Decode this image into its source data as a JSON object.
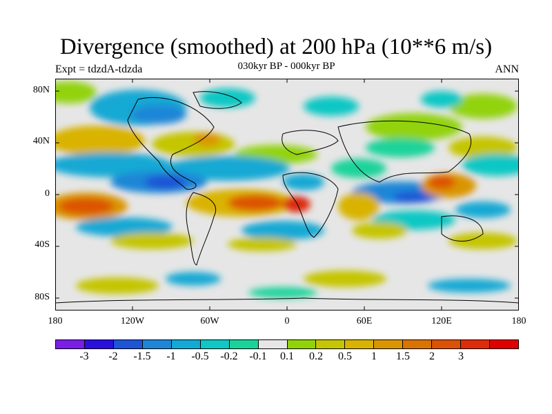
{
  "title": "Divergence (smoothed) at 200 hPa (10**6 m/s)",
  "left_label": "Expt = tdzdA-tdzda",
  "center_label": "030kyr BP - 000kyr BP",
  "right_label": "ANN",
  "y_ticks": [
    "80N",
    "40N",
    "0",
    "40S",
    "80S"
  ],
  "x_ticks": [
    "180",
    "120W",
    "60W",
    "0",
    "60E",
    "120E",
    "180"
  ],
  "colorbar": {
    "colors": [
      "#7a1ee6",
      "#2a10dc",
      "#1d55d6",
      "#1f86d7",
      "#12a9d4",
      "#10c7c4",
      "#1ad39a",
      "#e6e6e6",
      "#92d308",
      "#c5c503",
      "#d9b302",
      "#da9501",
      "#d97401",
      "#dc5205",
      "#dc2c0a",
      "#e00000"
    ],
    "labels": [
      "-3",
      "-2",
      "-1.5",
      "-1",
      "-0.5",
      "-0.2",
      "-0.1",
      "0.1",
      "0.2",
      "0.5",
      "1",
      "1.5",
      "2",
      "3"
    ]
  },
  "colors": {
    "background": "#e6e6e6",
    "neg_strong": "#1d55d6",
    "neg_mid": "#1f86d7",
    "neg_light": "#12a9d4",
    "neg_cyan": "#10c7c4",
    "neg_teal": "#1ad39a",
    "pos_light": "#92d308",
    "pos_yel": "#c5c503",
    "pos_orange": "#d9b302",
    "pos_deep": "#da9501",
    "pos_red": "#dc5205",
    "pos_max": "#dc2c0a"
  }
}
